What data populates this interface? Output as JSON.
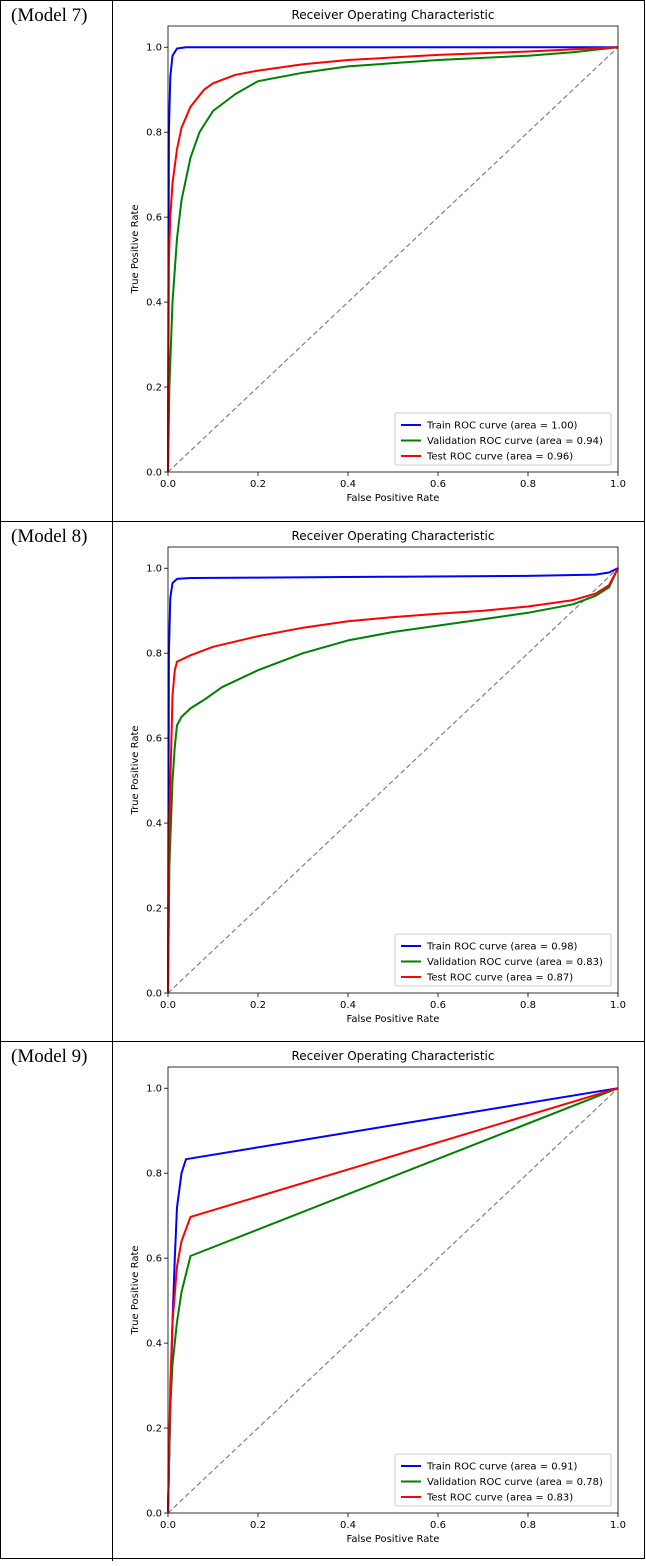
{
  "models": [
    {
      "label": "(Model 7)"
    },
    {
      "label": "(Model 8)"
    },
    {
      "label": "(Model 9)"
    }
  ],
  "colors": {
    "train": "#0000ff",
    "validation": "#008000",
    "test": "#ff0000",
    "diagonal": "#808080"
  },
  "chart_data": [
    {
      "type": "line",
      "title": "Receiver Operating Characteristic",
      "xlabel": "False Positive Rate",
      "ylabel": "True Positive Rate",
      "xlim": [
        0,
        1
      ],
      "ylim": [
        0,
        1.05
      ],
      "xticks": [
        "0.0",
        "0.2",
        "0.4",
        "0.6",
        "0.8",
        "1.0"
      ],
      "yticks": [
        "0.0",
        "0.2",
        "0.4",
        "0.6",
        "0.8",
        "1.0"
      ],
      "legend_position": "lower-right",
      "series": [
        {
          "name": "Train ROC curve (area = 1.00)",
          "color": "train",
          "x": [
            0,
            0.002,
            0.005,
            0.01,
            0.02,
            0.04,
            1.0
          ],
          "y": [
            0,
            0.8,
            0.93,
            0.98,
            0.997,
            1.0,
            1.0
          ]
        },
        {
          "name": "Validation ROC curve (area = 0.94)",
          "color": "validation",
          "x": [
            0,
            0.003,
            0.01,
            0.02,
            0.03,
            0.05,
            0.07,
            0.1,
            0.15,
            0.2,
            0.3,
            0.4,
            0.6,
            0.8,
            0.9,
            1.0
          ],
          "y": [
            0,
            0.2,
            0.4,
            0.55,
            0.64,
            0.74,
            0.8,
            0.85,
            0.89,
            0.92,
            0.94,
            0.955,
            0.97,
            0.98,
            0.988,
            1.0
          ]
        },
        {
          "name": "Test ROC curve (area = 0.96)",
          "color": "test",
          "x": [
            0,
            0.002,
            0.005,
            0.01,
            0.02,
            0.03,
            0.05,
            0.08,
            0.1,
            0.15,
            0.2,
            0.3,
            0.4,
            0.6,
            0.8,
            1.0
          ],
          "y": [
            0,
            0.5,
            0.6,
            0.68,
            0.76,
            0.81,
            0.86,
            0.9,
            0.915,
            0.935,
            0.945,
            0.96,
            0.97,
            0.982,
            0.99,
            1.0
          ]
        }
      ],
      "diagonal": true
    },
    {
      "type": "line",
      "title": "Receiver Operating Characteristic",
      "xlabel": "False Positive Rate",
      "ylabel": "True Positive Rate",
      "xlim": [
        0,
        1
      ],
      "ylim": [
        0,
        1.05
      ],
      "xticks": [
        "0.0",
        "0.2",
        "0.4",
        "0.6",
        "0.8",
        "1.0"
      ],
      "yticks": [
        "0.0",
        "0.2",
        "0.4",
        "0.6",
        "0.8",
        "1.0"
      ],
      "legend_position": "lower-right",
      "series": [
        {
          "name": "Train ROC curve (area = 0.98)",
          "color": "train",
          "x": [
            0,
            0.002,
            0.005,
            0.01,
            0.02,
            0.05,
            0.2,
            0.5,
            0.8,
            0.95,
            0.98,
            1.0
          ],
          "y": [
            0,
            0.8,
            0.93,
            0.965,
            0.975,
            0.977,
            0.978,
            0.98,
            0.982,
            0.985,
            0.99,
            1.0
          ]
        },
        {
          "name": "Validation ROC curve (area = 0.83)",
          "color": "validation",
          "x": [
            0,
            0.003,
            0.01,
            0.015,
            0.02,
            0.03,
            0.05,
            0.08,
            0.12,
            0.2,
            0.3,
            0.4,
            0.5,
            0.6,
            0.7,
            0.8,
            0.9,
            0.95,
            0.98,
            1.0
          ],
          "y": [
            0,
            0.3,
            0.5,
            0.58,
            0.63,
            0.65,
            0.67,
            0.69,
            0.72,
            0.76,
            0.8,
            0.83,
            0.85,
            0.865,
            0.88,
            0.895,
            0.915,
            0.935,
            0.955,
            1.0
          ]
        },
        {
          "name": "Test ROC curve (area = 0.87)",
          "color": "test",
          "x": [
            0,
            0.003,
            0.01,
            0.015,
            0.02,
            0.05,
            0.1,
            0.2,
            0.3,
            0.4,
            0.5,
            0.6,
            0.7,
            0.8,
            0.9,
            0.95,
            0.98,
            1.0
          ],
          "y": [
            0,
            0.4,
            0.7,
            0.76,
            0.78,
            0.795,
            0.815,
            0.84,
            0.86,
            0.875,
            0.885,
            0.893,
            0.9,
            0.91,
            0.925,
            0.94,
            0.96,
            1.0
          ]
        }
      ],
      "diagonal": true
    },
    {
      "type": "line",
      "title": "Receiver Operating Characteristic",
      "xlabel": "False Positive Rate",
      "ylabel": "True Positive Rate",
      "xlim": [
        0,
        1
      ],
      "ylim": [
        0,
        1.05
      ],
      "xticks": [
        "0.0",
        "0.2",
        "0.4",
        "0.6",
        "0.8",
        "1.0"
      ],
      "yticks": [
        "0.0",
        "0.2",
        "0.4",
        "0.6",
        "0.8",
        "1.0"
      ],
      "legend_position": "lower-right",
      "series": [
        {
          "name": "Train ROC curve (area = 0.91)",
          "color": "train",
          "x": [
            0,
            0.005,
            0.01,
            0.015,
            0.02,
            0.03,
            0.04,
            1.0
          ],
          "y": [
            0,
            0.25,
            0.45,
            0.6,
            0.72,
            0.8,
            0.833,
            1.0
          ]
        },
        {
          "name": "Validation ROC curve (area = 0.78)",
          "color": "validation",
          "x": [
            0,
            0.005,
            0.01,
            0.02,
            0.03,
            0.05,
            1.0
          ],
          "y": [
            0,
            0.25,
            0.35,
            0.45,
            0.52,
            0.605,
            1.0
          ]
        },
        {
          "name": "Test ROC curve (area = 0.83)",
          "color": "test",
          "x": [
            0,
            0.005,
            0.01,
            0.02,
            0.03,
            0.05,
            1.0
          ],
          "y": [
            0,
            0.3,
            0.45,
            0.58,
            0.64,
            0.697,
            1.0
          ]
        }
      ],
      "diagonal": true
    }
  ]
}
